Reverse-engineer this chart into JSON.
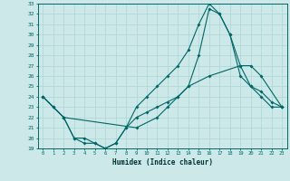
{
  "xlabel": "Humidex (Indice chaleur)",
  "xlim_min": -0.5,
  "xlim_max": 23.5,
  "ylim_min": 19,
  "ylim_max": 33,
  "xticks": [
    0,
    1,
    2,
    3,
    4,
    5,
    6,
    7,
    8,
    9,
    10,
    11,
    12,
    13,
    14,
    15,
    16,
    17,
    18,
    19,
    20,
    21,
    22,
    23
  ],
  "yticks": [
    19,
    20,
    21,
    22,
    23,
    24,
    25,
    26,
    27,
    28,
    29,
    30,
    31,
    32,
    33
  ],
  "bg_color": "#cce8e8",
  "line_color": "#006666",
  "grid_color": "#b0d8d8",
  "line1_x": [
    0,
    1,
    2,
    3,
    4,
    5,
    6,
    7,
    8,
    9,
    10,
    11,
    12,
    13,
    14,
    15,
    16,
    17,
    18,
    19,
    20,
    21,
    22,
    23
  ],
  "line1_y": [
    24,
    23,
    22,
    20,
    20,
    19.5,
    19,
    19.5,
    21,
    23,
    24,
    25,
    26,
    27,
    28.5,
    31,
    33,
    32,
    30,
    27,
    25,
    24,
    23,
    23
  ],
  "line2_x": [
    0,
    2,
    9,
    11,
    12,
    13,
    14,
    16,
    19,
    20,
    21,
    23
  ],
  "line2_y": [
    24,
    22,
    21,
    22,
    23,
    24,
    25,
    26,
    27,
    27,
    26,
    23
  ],
  "line3_x": [
    0,
    1,
    2,
    3,
    4,
    5,
    6,
    7,
    8,
    9,
    10,
    11,
    12,
    13,
    14,
    15,
    16,
    17,
    18,
    19,
    20,
    21,
    22,
    23
  ],
  "line3_y": [
    24,
    23,
    22,
    20,
    19.5,
    19.5,
    19,
    19.5,
    21,
    22,
    22.5,
    23,
    23.5,
    24,
    25,
    28,
    32.5,
    32,
    30,
    26,
    25,
    24.5,
    23.5,
    23
  ]
}
